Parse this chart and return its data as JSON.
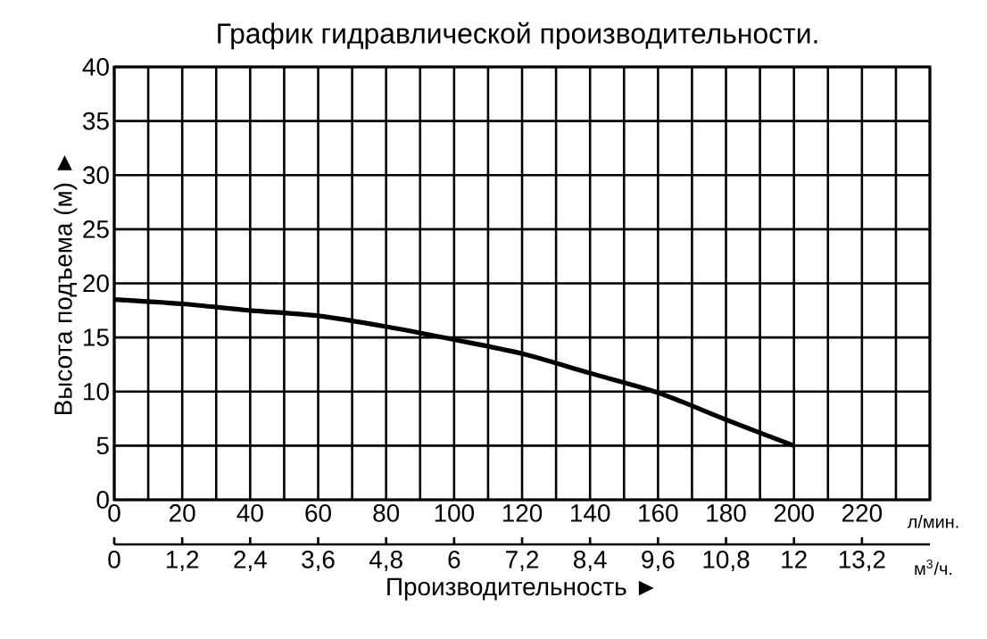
{
  "chart_data": {
    "type": "line",
    "title": "График гидравлической производительности.",
    "xlabel": "Производительность ►",
    "ylabel": "Высота подъема (м) ►",
    "x": [
      0,
      20,
      40,
      60,
      80,
      100,
      120,
      140,
      160,
      180,
      200
    ],
    "series": [
      {
        "color": "#000000",
        "values": [
          18.5,
          18.1,
          17.5,
          17.0,
          16.0,
          14.8,
          13.5,
          11.7,
          9.9,
          7.4,
          5.0
        ]
      }
    ],
    "xlim": [
      0,
      240
    ],
    "ylim": [
      0,
      40
    ],
    "xticks": [
      0,
      {
        "value": 10,
        "label": null
      },
      20,
      {
        "value": 30,
        "label": null
      },
      40,
      {
        "value": 50,
        "label": null
      },
      60,
      {
        "value": 70,
        "label": null
      },
      80,
      {
        "value": 90,
        "label": null
      },
      100,
      {
        "value": 110,
        "label": null
      },
      120,
      {
        "value": 130,
        "label": null
      },
      140,
      {
        "value": 150,
        "label": null
      },
      160,
      {
        "value": 170,
        "label": null
      },
      180,
      {
        "value": 190,
        "label": null
      },
      200,
      {
        "value": 210,
        "label": null
      },
      220,
      {
        "value": 230,
        "label": null
      },
      {
        "value": 240,
        "label": null
      }
    ],
    "yticks": [
      0,
      5,
      10,
      15,
      20,
      25,
      30,
      35,
      40
    ],
    "x2lim": [
      0,
      14.4
    ],
    "x2ticks": [
      0,
      {
        "value": 1.2,
        "label": "1,2"
      },
      {
        "value": 2.4,
        "label": "2,4"
      },
      {
        "value": 3.6,
        "label": "3,6"
      },
      {
        "value": 4.8,
        "label": "4,8"
      },
      6,
      {
        "value": 7.2,
        "label": "7,2"
      },
      {
        "value": 8.4,
        "label": "8,4"
      },
      {
        "value": 9.6,
        "label": "9,6"
      },
      {
        "value": 10.8,
        "label": "10,8"
      },
      12,
      {
        "value": 13.2,
        "label": "13,2"
      }
    ],
    "annotations": [
      "л/мин.",
      "м$^{3}$/ч."
    ],
    "grid": true,
    "marker": "none",
    "line_style": "solid"
  }
}
